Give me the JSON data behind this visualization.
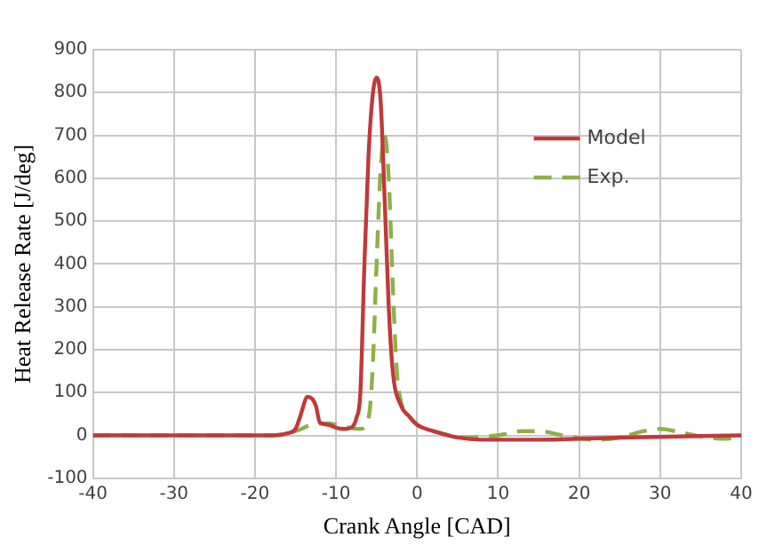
{
  "chart_data": {
    "type": "line",
    "xlabel": "Crank Angle [CAD]",
    "ylabel": "Heat Release Rate [J/deg]",
    "xlim": [
      -40,
      40
    ],
    "xticks": [
      -40,
      -30,
      -20,
      -10,
      0,
      10,
      20,
      30,
      40
    ],
    "ylim": [
      -100,
      900
    ],
    "yticks": [
      -100,
      0,
      100,
      200,
      300,
      400,
      500,
      600,
      700,
      800,
      900
    ],
    "grid": true,
    "legend": "top right",
    "marker": "none",
    "series": [
      {
        "name": "Model",
        "color": "#c0393b",
        "line_style": "solid",
        "x": [
          -40,
          -18,
          -16,
          -15,
          -14.5,
          -13.5,
          -12.5,
          -12,
          -11,
          -10,
          -9,
          -8,
          -7.5,
          -7,
          -6.5,
          -6,
          -5.5,
          -5,
          -4.5,
          -4,
          -3.5,
          -3,
          -2,
          -1,
          0,
          2,
          5,
          8,
          15,
          25,
          40
        ],
        "values": [
          0,
          0,
          5,
          15,
          40,
          90,
          70,
          30,
          25,
          18,
          15,
          20,
          40,
          100,
          400,
          650,
          790,
          835,
          780,
          550,
          300,
          150,
          70,
          45,
          25,
          10,
          -5,
          -10,
          -10,
          -5,
          0
        ]
      },
      {
        "name": "Exp.",
        "color": "#8db04a",
        "line_style": "dashed",
        "x": [
          -40,
          -18,
          -15,
          -13,
          -11,
          -10,
          -9,
          -7,
          -6,
          -5.5,
          -5,
          -4.5,
          -4,
          -3.5,
          -3,
          -2.5,
          -2,
          -1,
          0,
          3,
          6,
          10,
          13,
          15,
          18,
          22,
          25,
          28,
          30,
          33,
          36,
          38,
          40
        ],
        "values": [
          0,
          0,
          10,
          25,
          28,
          25,
          20,
          15,
          40,
          150,
          400,
          620,
          700,
          600,
          350,
          150,
          80,
          45,
          25,
          5,
          -5,
          0,
          10,
          10,
          0,
          -10,
          -5,
          10,
          15,
          5,
          -5,
          -8,
          0
        ]
      }
    ]
  }
}
